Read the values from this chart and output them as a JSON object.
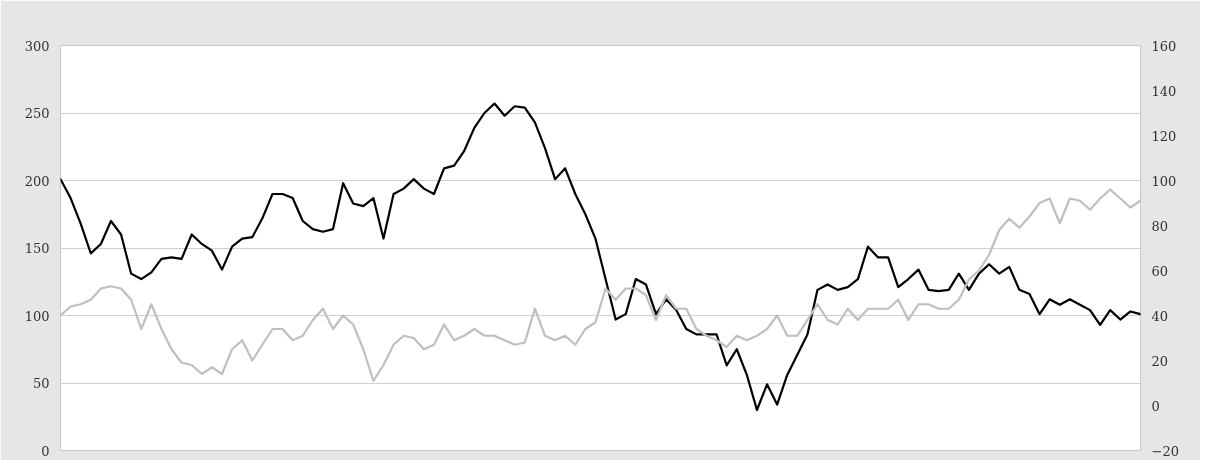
{
  "chart_data": {
    "type": "line",
    "categories": [
      null,
      null,
      null,
      null,
      null,
      null,
      null,
      null,
      null,
      null,
      null,
      null,
      null,
      null,
      null,
      null,
      null,
      null,
      null,
      null,
      null,
      null,
      null,
      null,
      null,
      null,
      null,
      null,
      null,
      null,
      null,
      null,
      null,
      null,
      null,
      null,
      null,
      null,
      null,
      null,
      null,
      null,
      null,
      null,
      null,
      null,
      null,
      null,
      null,
      null,
      null,
      null,
      null,
      null,
      null,
      null,
      null,
      null,
      null,
      null,
      null,
      null,
      null,
      null,
      null,
      null,
      null,
      null,
      null,
      null,
      null,
      null,
      null,
      null,
      null,
      null,
      null,
      null,
      null,
      null,
      null,
      null,
      null,
      null,
      null,
      null,
      null,
      null,
      null,
      null,
      null,
      null,
      null,
      null,
      null,
      null,
      null,
      null,
      null,
      null,
      null,
      null,
      null,
      null,
      null,
      null,
      null,
      null
    ],
    "series": [
      {
        "color": "#000000",
        "values": [
          201,
          187,
          168,
          146,
          153,
          170,
          160,
          131,
          127,
          132,
          142,
          143,
          142,
          160,
          153,
          148,
          134,
          151,
          157,
          158,
          172,
          190,
          190,
          187,
          170,
          164,
          162,
          164,
          198,
          183,
          181,
          187,
          157,
          190,
          194,
          201,
          194,
          190,
          209,
          211,
          222,
          239,
          250,
          257,
          248,
          255,
          254,
          243,
          224,
          201,
          209,
          190,
          175,
          157,
          127,
          97,
          101,
          127,
          123,
          101,
          112,
          104,
          90,
          86,
          86,
          86,
          63,
          75,
          56,
          30,
          49,
          34,
          56,
          71,
          86,
          119,
          123,
          119,
          121,
          127,
          151,
          143,
          143,
          121,
          127,
          134,
          119,
          118,
          119,
          131,
          119,
          131,
          138,
          131,
          136,
          119,
          116,
          101,
          112,
          108,
          112,
          108,
          104,
          93,
          104,
          97,
          103,
          101
        ]
      },
      {
        "color": "#bfbfbf",
        "axis": "y2",
        "values": [
          40,
          44,
          45,
          47,
          52,
          53,
          52,
          47,
          34,
          45,
          34,
          25,
          19,
          18,
          14,
          17,
          14,
          25,
          29,
          20,
          27,
          34,
          34,
          29,
          31,
          38,
          43,
          34,
          40,
          36,
          25,
          11,
          18,
          27,
          31,
          30,
          25,
          27,
          36,
          29,
          31,
          34,
          31,
          31,
          29,
          27,
          28,
          43,
          31,
          29,
          31,
          27,
          34,
          37,
          52,
          47,
          52,
          52,
          49,
          38,
          49,
          43,
          43,
          34,
          31,
          29,
          26,
          31,
          29,
          31,
          34,
          40,
          31,
          31,
          38,
          45,
          38,
          36,
          43,
          38,
          43,
          43,
          43,
          47,
          38,
          45,
          45,
          43,
          43,
          47,
          56,
          60,
          67,
          78,
          83,
          79,
          84,
          90,
          92,
          81,
          92,
          91,
          87,
          92,
          96,
          92,
          88,
          91
        ]
      }
    ],
    "ylim": [
      0,
      300
    ],
    "yticks": [
      0,
      50,
      100,
      150,
      200,
      250,
      300
    ],
    "y2lim": [
      -20,
      160
    ],
    "y2ticks": [
      -20,
      0,
      20,
      40,
      60,
      80,
      100,
      120,
      140,
      160
    ],
    "grid": "y",
    "line_style": "solid",
    "marker": "none",
    "tick_labels": "y"
  }
}
